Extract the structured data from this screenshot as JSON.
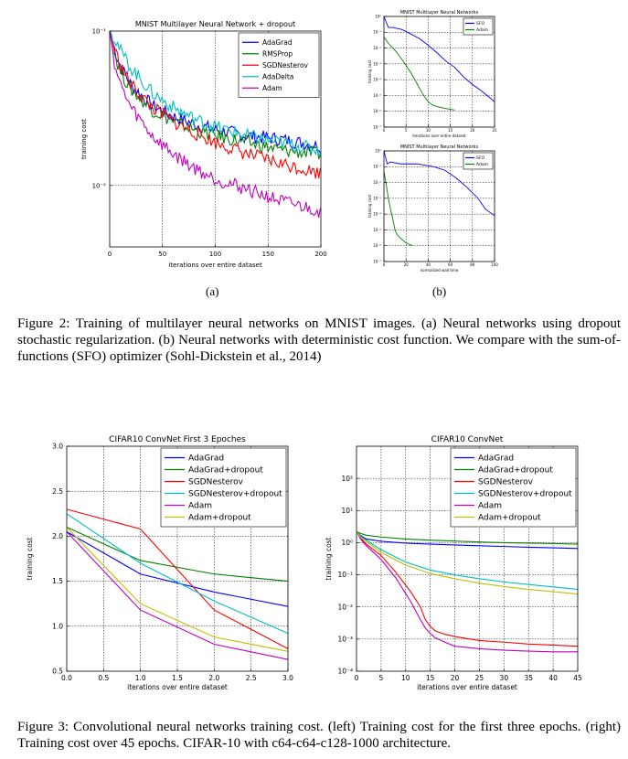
{
  "subfig_labels": {
    "a": "(a)",
    "b": "(b)"
  },
  "captions": {
    "fig2": "Figure 2: Training of multilayer neural networks on MNIST images. (a) Neural networks using dropout stochastic regularization. (b) Neural networks with deterministic cost function. We compare with the sum-of-functions (SFO) optimizer (Sohl-Dickstein et al., 2014)",
    "fig3": "Figure 3: Convolutional neural networks training cost. (left) Training cost for the first three epochs. (right) Training cost over 45 epochs. CIFAR-10 with c64-c64-c128-1000 architecture."
  },
  "chart_data": [
    {
      "id": "fig2a",
      "type": "line",
      "yscale": "log",
      "title": "MNIST Multilayer Neural Network + dropout",
      "xlabel": "iterations over entire dataset",
      "ylabel": "training cost",
      "xlim": [
        0,
        200
      ],
      "ylim": [
        0.004,
        0.1
      ],
      "xticks": [
        0,
        50,
        100,
        150,
        200
      ],
      "yticks": [
        {
          "v": 0.1,
          "label": "10⁻¹"
        },
        {
          "v": 0.01,
          "label": "10⁻²"
        }
      ],
      "legend_loc": "top-right",
      "series": [
        {
          "name": "AdaGrad",
          "color": "#0000ff",
          "x": [
            0,
            5,
            10,
            20,
            40,
            60,
            80,
            100,
            130,
            160,
            200
          ],
          "y": [
            0.1,
            0.075,
            0.06,
            0.045,
            0.033,
            0.028,
            0.025,
            0.023,
            0.021,
            0.02,
            0.018
          ]
        },
        {
          "name": "RMSProp",
          "color": "#008000",
          "x": [
            0,
            5,
            10,
            20,
            40,
            60,
            80,
            100,
            130,
            160,
            200
          ],
          "y": [
            0.1,
            0.07,
            0.055,
            0.042,
            0.031,
            0.026,
            0.023,
            0.021,
            0.019,
            0.017,
            0.016
          ]
        },
        {
          "name": "SGDNesterov",
          "color": "#ff0000",
          "x": [
            0,
            5,
            10,
            20,
            40,
            60,
            80,
            100,
            130,
            160,
            200
          ],
          "y": [
            0.1,
            0.075,
            0.06,
            0.045,
            0.032,
            0.026,
            0.022,
            0.019,
            0.016,
            0.014,
            0.012
          ]
        },
        {
          "name": "AdaDelta",
          "color": "#00bfbf",
          "x": [
            0,
            5,
            10,
            20,
            40,
            60,
            80,
            100,
            130,
            160,
            200
          ],
          "y": [
            0.1,
            0.09,
            0.075,
            0.058,
            0.04,
            0.032,
            0.027,
            0.024,
            0.021,
            0.019,
            0.017
          ]
        },
        {
          "name": "Adam",
          "color": "#bf00bf",
          "x": [
            0,
            5,
            10,
            20,
            40,
            60,
            80,
            100,
            130,
            160,
            200
          ],
          "y": [
            0.1,
            0.06,
            0.045,
            0.032,
            0.021,
            0.016,
            0.013,
            0.011,
            0.0095,
            0.008,
            0.0068
          ]
        }
      ]
    },
    {
      "id": "fig2b-top",
      "type": "line",
      "yscale": "log",
      "title": "MNIST Multilayer Neural Networks",
      "xlabel": "iterations over entire dataset",
      "ylabel": "training cost",
      "xlim": [
        0,
        25
      ],
      "ylim": [
        1e-07,
        1
      ],
      "xticks": [
        0,
        5,
        10,
        15,
        20,
        25
      ],
      "yticks": [
        {
          "v": 1,
          "label": "10⁰"
        },
        {
          "v": 0.1,
          "label": "10⁻¹"
        },
        {
          "v": 0.01,
          "label": "10⁻²"
        },
        {
          "v": 0.001,
          "label": "10⁻³"
        },
        {
          "v": 0.0001,
          "label": "10⁻⁴"
        },
        {
          "v": 1e-05,
          "label": "10⁻⁵"
        },
        {
          "v": 1e-06,
          "label": "10⁻⁶"
        },
        {
          "v": 1e-07,
          "label": "10⁻⁷"
        }
      ],
      "legend_loc": "top-right",
      "series": [
        {
          "name": "SFO",
          "color": "#0000ff",
          "x": [
            0,
            1,
            2,
            4,
            6,
            8,
            10,
            12,
            14,
            16,
            18,
            20,
            22,
            24,
            25
          ],
          "y": [
            1,
            0.2,
            0.2,
            0.15,
            0.08,
            0.04,
            0.015,
            0.005,
            0.0015,
            0.0006,
            0.00015,
            5e-05,
            2e-05,
            7e-06,
            4e-06
          ]
        },
        {
          "name": "Adam",
          "color": "#008000",
          "x": [
            0,
            1,
            2,
            3,
            4,
            5,
            6,
            7,
            8,
            9,
            10,
            11,
            12,
            14,
            16
          ],
          "y": [
            0.05,
            0.02,
            0.01,
            0.005,
            0.002,
            0.0008,
            0.0003,
            0.0001,
            3e-05,
            1e-05,
            4e-06,
            2.5e-06,
            2e-06,
            1.5e-06,
            1.2e-06
          ]
        }
      ]
    },
    {
      "id": "fig2b-bottom",
      "type": "line",
      "yscale": "log",
      "title": "MNIST Multilayer Neural Networks",
      "xlabel": "normalized wall time",
      "ylabel": "training cost",
      "xlim": [
        0,
        100
      ],
      "ylim": [
        1e-07,
        1
      ],
      "xticks": [
        0,
        20,
        40,
        60,
        80,
        100
      ],
      "yticks": [
        {
          "v": 1,
          "label": "10⁰"
        },
        {
          "v": 0.1,
          "label": "10⁻¹"
        },
        {
          "v": 0.01,
          "label": "10⁻²"
        },
        {
          "v": 0.001,
          "label": "10⁻³"
        },
        {
          "v": 0.0001,
          "label": "10⁻⁴"
        },
        {
          "v": 1e-05,
          "label": "10⁻⁵"
        },
        {
          "v": 1e-06,
          "label": "10⁻⁶"
        },
        {
          "v": 1e-07,
          "label": "10⁻⁷"
        }
      ],
      "legend_loc": "top-right",
      "series": [
        {
          "name": "SFO",
          "color": "#0000ff",
          "x": [
            0,
            3,
            6,
            15,
            30,
            45,
            55,
            65,
            75,
            85,
            92,
            100
          ],
          "y": [
            1,
            0.15,
            0.2,
            0.15,
            0.15,
            0.1,
            0.06,
            0.02,
            0.005,
            0.001,
            0.0002,
            8e-05
          ]
        },
        {
          "name": "Adam",
          "color": "#008000",
          "x": [
            0,
            2,
            4,
            6,
            8,
            10,
            12,
            15,
            20,
            26
          ],
          "y": [
            0.05,
            0.008,
            0.001,
            0.0002,
            5e-05,
            1e-05,
            5e-06,
            3e-06,
            1.5e-06,
            1e-06
          ]
        }
      ]
    },
    {
      "id": "fig3-left",
      "type": "line",
      "yscale": "linear",
      "title": "CIFAR10 ConvNet First 3 Epoches",
      "xlabel": "iterations over entire dataset",
      "ylabel": "training cost",
      "xlim": [
        0,
        3
      ],
      "ylim": [
        0.5,
        3.0
      ],
      "xticks": [
        0,
        0.5,
        1.0,
        1.5,
        2.0,
        2.5,
        3.0
      ],
      "xtick_labels": [
        "0.0",
        "0.5",
        "1.0",
        "1.5",
        "2.0",
        "2.5",
        "3.0"
      ],
      "yticks": [
        {
          "v": 0.5,
          "label": "0.5"
        },
        {
          "v": 1.0,
          "label": "1.0"
        },
        {
          "v": 1.5,
          "label": "1.5"
        },
        {
          "v": 2.0,
          "label": "2.0"
        },
        {
          "v": 2.5,
          "label": "2.5"
        },
        {
          "v": 3.0,
          "label": "3.0"
        }
      ],
      "legend_loc": "top-right",
      "series": [
        {
          "name": "AdaGrad",
          "color": "#0000ff",
          "x": [
            0,
            1,
            2,
            3
          ],
          "y": [
            2.05,
            1.58,
            1.38,
            1.22
          ]
        },
        {
          "name": "AdaGrad+dropout",
          "color": "#008000",
          "x": [
            0,
            1,
            2,
            3
          ],
          "y": [
            2.1,
            1.73,
            1.58,
            1.5
          ]
        },
        {
          "name": "SGDNesterov",
          "color": "#ff0000",
          "x": [
            0,
            1,
            2,
            3
          ],
          "y": [
            2.3,
            2.08,
            1.18,
            0.75
          ]
        },
        {
          "name": "SGDNesterov+dropout",
          "color": "#00bfbf",
          "x": [
            0,
            1,
            2,
            3
          ],
          "y": [
            2.25,
            1.7,
            1.28,
            0.92
          ]
        },
        {
          "name": "Adam",
          "color": "#bf00bf",
          "x": [
            0,
            1,
            2,
            3
          ],
          "y": [
            2.05,
            1.18,
            0.8,
            0.63
          ]
        },
        {
          "name": "Adam+dropout",
          "color": "#bfbf00",
          "x": [
            0,
            1,
            2,
            3
          ],
          "y": [
            2.1,
            1.25,
            0.88,
            0.72
          ]
        }
      ]
    },
    {
      "id": "fig3-right",
      "type": "line",
      "yscale": "log",
      "title": "CIFAR10 ConvNet",
      "xlabel": "iterations over entire dataset",
      "ylabel": "training cost",
      "xlim": [
        0,
        45
      ],
      "ylim": [
        0.0001,
        1000
      ],
      "xticks": [
        0,
        5,
        10,
        15,
        20,
        25,
        30,
        35,
        40,
        45
      ],
      "yticks": [
        {
          "v": 0.0001,
          "label": "10⁻⁴"
        },
        {
          "v": 0.001,
          "label": "10⁻³"
        },
        {
          "v": 0.01,
          "label": "10⁻²"
        },
        {
          "v": 0.1,
          "label": "10⁻¹"
        },
        {
          "v": 1,
          "label": "10⁰"
        },
        {
          "v": 10,
          "label": "10¹"
        },
        {
          "v": 100,
          "label": "10²"
        }
      ],
      "legend_loc": "top-right",
      "series": [
        {
          "name": "AdaGrad",
          "color": "#0000ff",
          "x": [
            0,
            1,
            2,
            5,
            10,
            15,
            20,
            25,
            30,
            35,
            40,
            45
          ],
          "y": [
            2.2,
            1.6,
            1.3,
            1.1,
            0.97,
            0.9,
            0.85,
            0.8,
            0.76,
            0.72,
            0.69,
            0.66
          ]
        },
        {
          "name": "AdaGrad+dropout",
          "color": "#008000",
          "x": [
            0,
            1,
            2,
            5,
            10,
            15,
            20,
            25,
            30,
            35,
            40,
            45
          ],
          "y": [
            2.2,
            1.9,
            1.7,
            1.5,
            1.3,
            1.2,
            1.12,
            1.05,
            1.0,
            0.97,
            0.94,
            0.9
          ]
        },
        {
          "name": "SGDNesterov",
          "color": "#ff0000",
          "x": [
            0,
            1,
            2,
            5,
            8,
            11,
            13,
            14,
            15,
            16,
            18,
            20,
            25,
            30,
            35,
            40,
            45
          ],
          "y": [
            2.2,
            1.3,
            0.9,
            0.4,
            0.12,
            0.03,
            0.01,
            0.004,
            0.0025,
            0.0018,
            0.0014,
            0.0012,
            0.0009,
            0.0008,
            0.0007,
            0.00065,
            0.0006
          ]
        },
        {
          "name": "SGDNesterov+dropout",
          "color": "#00bfbf",
          "x": [
            0,
            1,
            2,
            5,
            10,
            15,
            20,
            25,
            30,
            35,
            40,
            45
          ],
          "y": [
            2.2,
            1.5,
            1.2,
            0.6,
            0.25,
            0.14,
            0.1,
            0.075,
            0.06,
            0.05,
            0.042,
            0.035
          ]
        },
        {
          "name": "Adam",
          "color": "#bf00bf",
          "x": [
            0,
            1,
            2,
            5,
            8,
            11,
            13,
            14,
            15,
            16,
            18,
            20,
            25,
            30,
            35,
            40,
            45
          ],
          "y": [
            2.2,
            1.2,
            0.8,
            0.3,
            0.08,
            0.015,
            0.004,
            0.0022,
            0.0015,
            0.0011,
            0.0008,
            0.0006,
            0.0005,
            0.00045,
            0.00042,
            0.0004,
            0.0004
          ]
        },
        {
          "name": "Adam+dropout",
          "color": "#bfbf00",
          "x": [
            0,
            1,
            2,
            5,
            10,
            15,
            20,
            25,
            30,
            35,
            40,
            45
          ],
          "y": [
            2.2,
            1.4,
            1.1,
            0.5,
            0.2,
            0.11,
            0.075,
            0.055,
            0.043,
            0.035,
            0.03,
            0.025
          ]
        }
      ]
    }
  ]
}
